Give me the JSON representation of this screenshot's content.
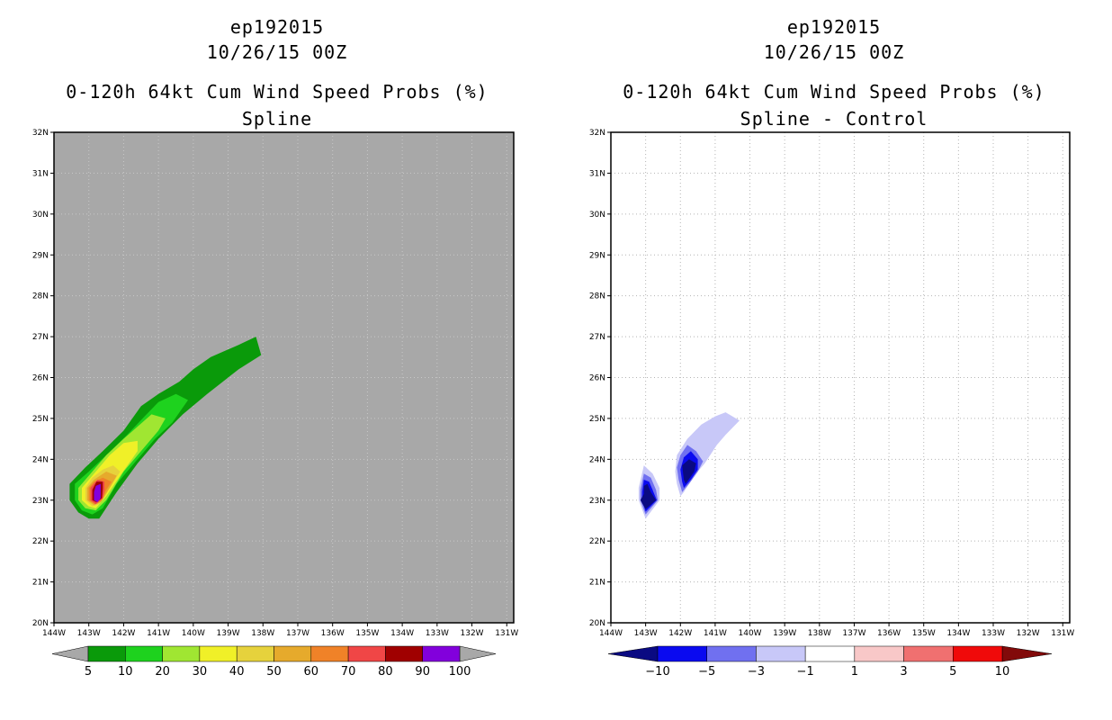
{
  "chart_data": [
    {
      "type": "heatmap",
      "storm_id": "ep192015",
      "date": "10/26/15 00Z",
      "title": "0-120h 64kt Cum Wind Speed Probs (%)",
      "subtitle": "Spline",
      "x_ticks": [
        "144W",
        "143W",
        "142W",
        "141W",
        "140W",
        "139W",
        "138W",
        "137W",
        "136W",
        "135W",
        "134W",
        "133W",
        "132W",
        "131W"
      ],
      "y_ticks": [
        "20N",
        "21N",
        "22N",
        "23N",
        "24N",
        "25N",
        "26N",
        "27N",
        "28N",
        "29N",
        "30N",
        "31N",
        "32N"
      ],
      "xlim": [
        -144,
        -130.8
      ],
      "ylim": [
        20,
        32
      ],
      "background": "#a8a8a8",
      "grid": true,
      "colorbar": {
        "labels": [
          "5",
          "10",
          "20",
          "30",
          "40",
          "50",
          "60",
          "70",
          "80",
          "90",
          "100"
        ],
        "colors": [
          "#0a9a0a",
          "#1ed21e",
          "#a0e632",
          "#f0f028",
          "#e6d23c",
          "#e6aa2c",
          "#f08228",
          "#f04646",
          "#a00000",
          "#8200dc"
        ]
      },
      "contours": [
        {
          "level": "5",
          "color": "#0a9a0a",
          "polygon": [
            [
              -143.55,
              23.4
            ],
            [
              -143.55,
              23.0
            ],
            [
              -143.3,
              22.7
            ],
            [
              -143.0,
              22.55
            ],
            [
              -142.7,
              22.55
            ],
            [
              -142.2,
              23.2
            ],
            [
              -141.6,
              23.9
            ],
            [
              -141.0,
              24.5
            ],
            [
              -140.3,
              25.1
            ],
            [
              -139.6,
              25.6
            ],
            [
              -138.7,
              26.2
            ],
            [
              -138.05,
              26.55
            ],
            [
              -138.2,
              27.0
            ],
            [
              -138.7,
              26.8
            ],
            [
              -139.5,
              26.5
            ],
            [
              -140.0,
              26.2
            ],
            [
              -140.4,
              25.9
            ],
            [
              -141.0,
              25.6
            ],
            [
              -141.5,
              25.3
            ],
            [
              -142.0,
              24.7
            ],
            [
              -142.6,
              24.2
            ],
            [
              -143.1,
              23.8
            ]
          ]
        },
        {
          "level": "10",
          "color": "#1ed21e",
          "polygon": [
            [
              -143.4,
              23.4
            ],
            [
              -143.4,
              23.0
            ],
            [
              -143.2,
              22.75
            ],
            [
              -142.9,
              22.65
            ],
            [
              -142.6,
              22.8
            ],
            [
              -142.2,
              23.4
            ],
            [
              -141.6,
              24.0
            ],
            [
              -141.1,
              24.5
            ],
            [
              -140.6,
              24.9
            ],
            [
              -140.15,
              25.45
            ],
            [
              -140.5,
              25.6
            ],
            [
              -141.0,
              25.4
            ],
            [
              -141.4,
              25.05
            ],
            [
              -141.9,
              24.6
            ],
            [
              -142.5,
              24.1
            ],
            [
              -143.0,
              23.7
            ]
          ]
        },
        {
          "level": "20",
          "color": "#a0e632",
          "polygon": [
            [
              -143.3,
              23.3
            ],
            [
              -143.3,
              23.0
            ],
            [
              -143.1,
              22.8
            ],
            [
              -142.8,
              22.75
            ],
            [
              -142.5,
              23.0
            ],
            [
              -142.0,
              23.7
            ],
            [
              -141.5,
              24.2
            ],
            [
              -141.0,
              24.7
            ],
            [
              -140.8,
              25.0
            ],
            [
              -141.2,
              25.1
            ],
            [
              -141.6,
              24.8
            ],
            [
              -142.0,
              24.5
            ],
            [
              -142.5,
              24.1
            ],
            [
              -142.9,
              23.7
            ]
          ]
        },
        {
          "level": "30",
          "color": "#f0f028",
          "polygon": [
            [
              -143.2,
              23.3
            ],
            [
              -143.2,
              23.0
            ],
            [
              -143.0,
              22.85
            ],
            [
              -142.8,
              22.8
            ],
            [
              -142.5,
              23.1
            ],
            [
              -142.1,
              23.6
            ],
            [
              -141.6,
              24.2
            ],
            [
              -141.6,
              24.45
            ],
            [
              -142.0,
              24.4
            ],
            [
              -142.4,
              24.1
            ],
            [
              -142.8,
              23.7
            ]
          ]
        },
        {
          "level": "40",
          "color": "#e6d23c",
          "polygon": [
            [
              -143.1,
              23.3
            ],
            [
              -143.1,
              23.0
            ],
            [
              -142.9,
              22.85
            ],
            [
              -142.7,
              22.9
            ],
            [
              -142.4,
              23.3
            ],
            [
              -142.1,
              23.7
            ],
            [
              -142.3,
              23.85
            ],
            [
              -142.6,
              23.75
            ],
            [
              -142.9,
              23.55
            ]
          ]
        },
        {
          "level": "50",
          "color": "#e6aa2c",
          "polygon": [
            [
              -143.05,
              23.3
            ],
            [
              -143.05,
              23.0
            ],
            [
              -142.85,
              22.88
            ],
            [
              -142.65,
              22.95
            ],
            [
              -142.4,
              23.3
            ],
            [
              -142.2,
              23.6
            ],
            [
              -142.5,
              23.7
            ],
            [
              -142.85,
              23.5
            ]
          ]
        },
        {
          "level": "60",
          "color": "#f08228",
          "polygon": [
            [
              -143.0,
              23.3
            ],
            [
              -143.0,
              23.0
            ],
            [
              -142.82,
              22.9
            ],
            [
              -142.62,
              23.0
            ],
            [
              -142.5,
              23.25
            ],
            [
              -142.35,
              23.45
            ],
            [
              -142.6,
              23.55
            ],
            [
              -142.85,
              23.45
            ]
          ]
        },
        {
          "level": "70",
          "color": "#f04646",
          "polygon": [
            [
              -142.95,
              23.3
            ],
            [
              -142.95,
              23.0
            ],
            [
              -142.8,
              22.9
            ],
            [
              -142.6,
              23.05
            ],
            [
              -142.55,
              23.25
            ],
            [
              -142.55,
              23.45
            ],
            [
              -142.75,
              23.5
            ]
          ]
        },
        {
          "level": "80",
          "color": "#a00000",
          "polygon": [
            [
              -142.9,
              23.25
            ],
            [
              -142.9,
              23.0
            ],
            [
              -142.78,
              22.95
            ],
            [
              -142.62,
              23.05
            ],
            [
              -142.6,
              23.3
            ],
            [
              -142.6,
              23.45
            ],
            [
              -142.78,
              23.45
            ]
          ]
        },
        {
          "level": "90",
          "color": "#8200dc",
          "polygon": [
            [
              -142.85,
              23.2
            ],
            [
              -142.85,
              23.0
            ],
            [
              -142.75,
              22.95
            ],
            [
              -142.66,
              23.05
            ],
            [
              -142.66,
              23.3
            ],
            [
              -142.66,
              23.4
            ],
            [
              -142.8,
              23.35
            ]
          ]
        }
      ]
    },
    {
      "type": "heatmap",
      "storm_id": "ep192015",
      "date": "10/26/15 00Z",
      "title": "0-120h 64kt Cum Wind Speed Probs (%)",
      "subtitle": "Spline - Control",
      "x_ticks": [
        "144W",
        "143W",
        "142W",
        "141W",
        "140W",
        "139W",
        "138W",
        "137W",
        "136W",
        "135W",
        "134W",
        "133W",
        "132W",
        "131W"
      ],
      "y_ticks": [
        "20N",
        "21N",
        "22N",
        "23N",
        "24N",
        "25N",
        "26N",
        "27N",
        "28N",
        "29N",
        "30N",
        "31N",
        "32N"
      ],
      "xlim": [
        -144,
        -130.8
      ],
      "ylim": [
        20,
        32
      ],
      "background": "#ffffff",
      "grid": true,
      "colorbar": {
        "labels": [
          "-10",
          "-5",
          "-3",
          "-1",
          "1",
          "3",
          "5",
          "10"
        ],
        "colors": [
          "#0a0a82",
          "#0a0af0",
          "#7070f0",
          "#c8c8f8",
          "#ffffff",
          "#f8c8c8",
          "#f07070",
          "#f00a0a",
          "#820a0a"
        ]
      },
      "contours": [
        {
          "level": "-1",
          "color": "#c8c8f8",
          "polygon": [
            [
              -142.1,
              23.4
            ],
            [
              -142.0,
              23.1
            ],
            [
              -141.9,
              23.2
            ],
            [
              -141.6,
              23.6
            ],
            [
              -141.3,
              23.9
            ],
            [
              -140.95,
              24.35
            ],
            [
              -140.7,
              24.6
            ],
            [
              -140.3,
              24.95
            ],
            [
              -140.7,
              25.15
            ],
            [
              -141.0,
              25.05
            ],
            [
              -141.4,
              24.85
            ],
            [
              -141.8,
              24.5
            ],
            [
              -142.1,
              24.1
            ],
            [
              -142.15,
              23.7
            ]
          ]
        },
        {
          "level": "-3",
          "color": "#7070f0",
          "polygon": [
            [
              -142.05,
              23.5
            ],
            [
              -141.95,
              23.2
            ],
            [
              -141.75,
              23.4
            ],
            [
              -141.5,
              23.7
            ],
            [
              -141.35,
              23.95
            ],
            [
              -141.55,
              24.2
            ],
            [
              -141.8,
              24.35
            ],
            [
              -142.0,
              24.1
            ],
            [
              -142.1,
              23.8
            ]
          ]
        },
        {
          "level": "-5",
          "color": "#0a0af0",
          "polygon": [
            [
              -141.95,
              23.45
            ],
            [
              -141.9,
              23.3
            ],
            [
              -141.7,
              23.5
            ],
            [
              -141.5,
              23.75
            ],
            [
              -141.5,
              24.0
            ],
            [
              -141.7,
              24.2
            ],
            [
              -141.9,
              24.05
            ],
            [
              -142.0,
              23.75
            ]
          ]
        },
        {
          "level": "-10",
          "color": "#0a0a82",
          "polygon": [
            [
              -141.9,
              23.5
            ],
            [
              -141.85,
              23.4
            ],
            [
              -141.6,
              23.7
            ],
            [
              -141.55,
              23.9
            ],
            [
              -141.75,
              24.0
            ],
            [
              -141.95,
              23.85
            ]
          ]
        },
        {
          "level": "-1",
          "color": "#c8c8f8",
          "polygon": [
            [
              -143.2,
              23.3
            ],
            [
              -143.2,
              23.0
            ],
            [
              -143.0,
              22.55
            ],
            [
              -142.6,
              23.0
            ],
            [
              -142.6,
              23.3
            ],
            [
              -142.8,
              23.65
            ],
            [
              -143.05,
              23.85
            ]
          ]
        },
        {
          "level": "-3",
          "color": "#7070f0",
          "polygon": [
            [
              -143.15,
              23.25
            ],
            [
              -143.15,
              23.0
            ],
            [
              -143.0,
              22.65
            ],
            [
              -142.65,
              23.0
            ],
            [
              -142.7,
              23.25
            ],
            [
              -142.85,
              23.55
            ],
            [
              -143.05,
              23.65
            ]
          ]
        },
        {
          "level": "-5",
          "color": "#0a0af0",
          "polygon": [
            [
              -143.1,
              23.2
            ],
            [
              -143.1,
              23.0
            ],
            [
              -143.0,
              22.72
            ],
            [
              -142.68,
              23.0
            ],
            [
              -142.8,
              23.25
            ],
            [
              -142.9,
              23.45
            ],
            [
              -143.05,
              23.5
            ]
          ]
        },
        {
          "level": "-10",
          "color": "#0a0a82",
          "polygon": [
            [
              -143.05,
              23.15
            ],
            [
              -143.15,
              23.0
            ],
            [
              -143.0,
              22.78
            ],
            [
              -142.7,
              23.0
            ],
            [
              -142.85,
              23.2
            ],
            [
              -142.95,
              23.4
            ],
            [
              -143.05,
              23.35
            ]
          ]
        }
      ]
    }
  ]
}
